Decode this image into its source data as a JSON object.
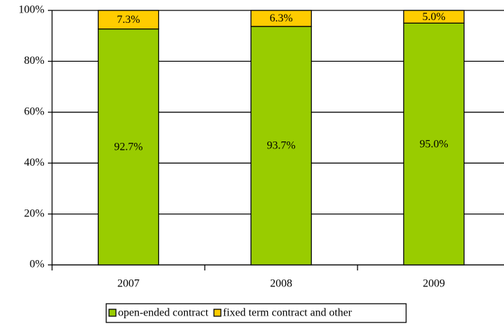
{
  "chart_data": {
    "type": "stacked_bar",
    "categories": [
      "2007",
      "2008",
      "2009"
    ],
    "series": [
      {
        "name": "open-ended contract",
        "color": "#99cc00",
        "values": [
          92.7,
          93.7,
          95.0
        ],
        "value_labels": [
          "92.7%",
          "93.7%",
          "95.0%"
        ]
      },
      {
        "name": "fixed term contract and other",
        "color": "#ffcc00",
        "values": [
          7.3,
          6.3,
          5.0
        ],
        "value_labels": [
          "7.3%",
          "6.3%",
          "5.0%"
        ]
      }
    ],
    "ylim": [
      0,
      100
    ],
    "yticks": [
      {
        "value": 0,
        "label": "0%"
      },
      {
        "value": 20,
        "label": "20%"
      },
      {
        "value": 40,
        "label": "40%"
      },
      {
        "value": 60,
        "label": "60%"
      },
      {
        "value": 80,
        "label": "80%"
      },
      {
        "value": 100,
        "label": "100%"
      }
    ],
    "grid": true,
    "legend": "bottom"
  }
}
